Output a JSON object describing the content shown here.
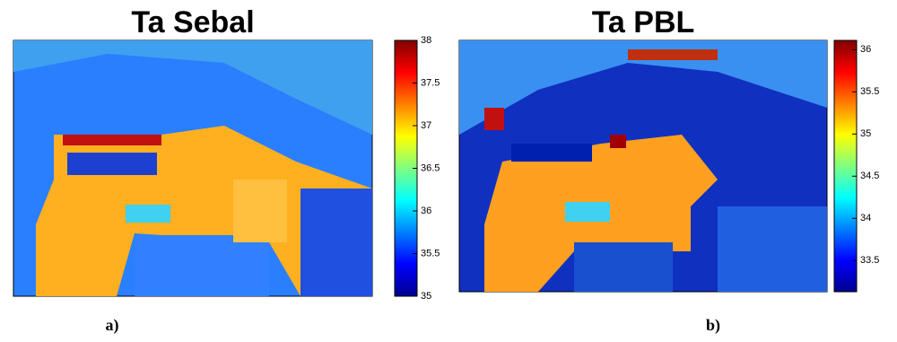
{
  "chart_data": [
    {
      "type": "heatmap",
      "title": "Ta Sebal",
      "caption": "a)",
      "colormap": "jet",
      "clim": [
        35,
        38
      ],
      "cticks": [
        35,
        35.5,
        36,
        36.5,
        37,
        37.5,
        38
      ]
    },
    {
      "type": "heatmap",
      "title": "Ta PBL",
      "caption": "b)",
      "colormap": "jet",
      "clim": [
        33.13,
        36.11
      ],
      "cticks": [
        33.5,
        34,
        34.5,
        35,
        35.5,
        36
      ]
    }
  ]
}
